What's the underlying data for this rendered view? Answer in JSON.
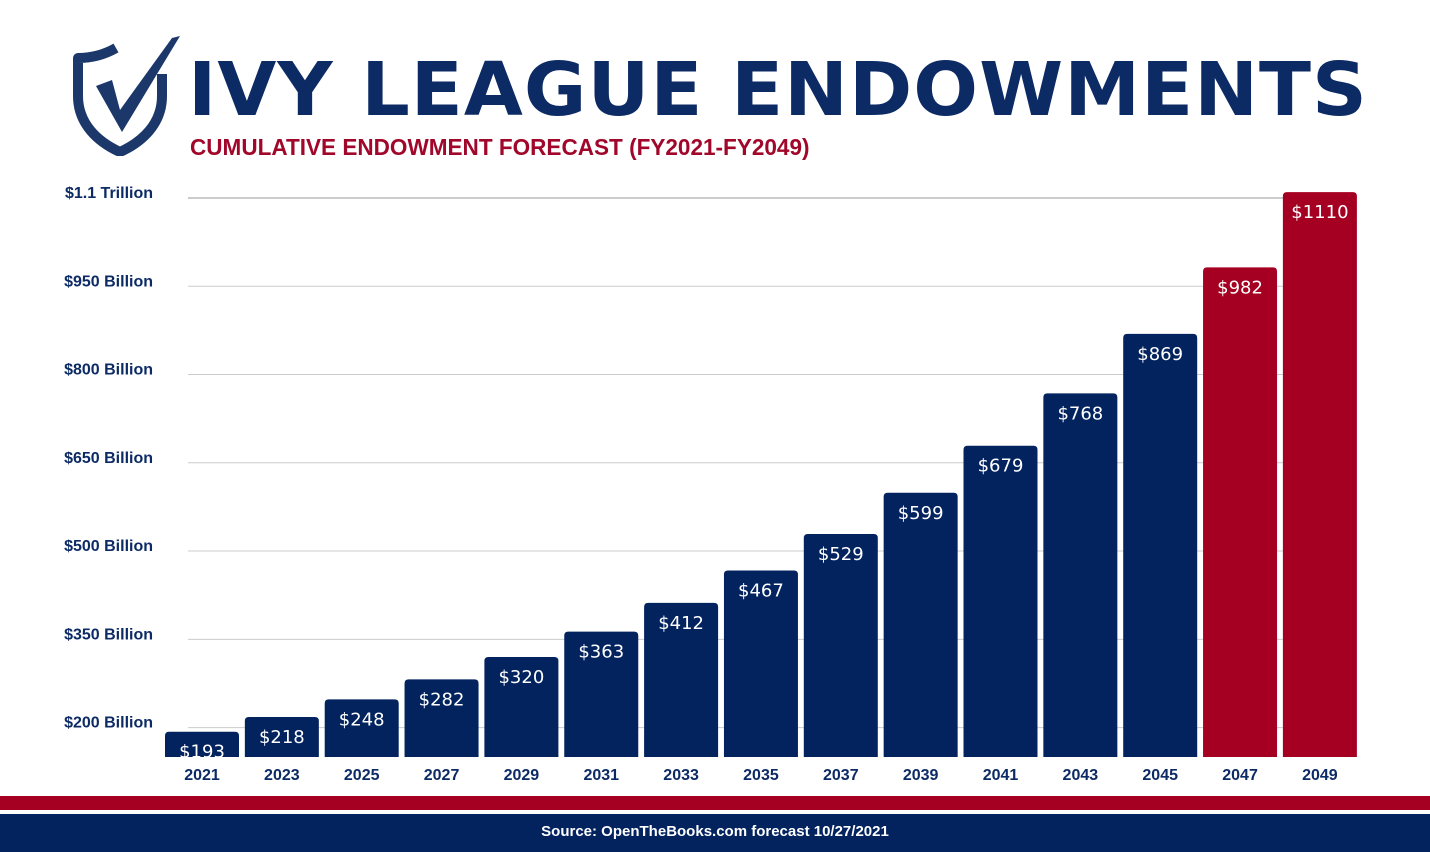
{
  "header": {
    "title": "IVY LEAGUE ENDOWMENTS",
    "subtitle": "CUMULATIVE ENDOWMENT FORECAST (FY2021-FY2049)",
    "logo_icon": "shield-checkmark-icon"
  },
  "footer": {
    "source": "Source: OpenTheBooks.com forecast 10/27/2021"
  },
  "colors": {
    "navy": "#03235f",
    "red": "#a50021"
  },
  "chart_data": {
    "type": "bar",
    "title": "",
    "xlabel": "",
    "ylabel": "",
    "ylim": [
      150,
      1100
    ],
    "grid": true,
    "yticks": [
      {
        "value": 200,
        "label": "$200 Billion"
      },
      {
        "value": 350,
        "label": "$350 Billion"
      },
      {
        "value": 500,
        "label": "$500 Billion"
      },
      {
        "value": 650,
        "label": "$650 Billion"
      },
      {
        "value": 800,
        "label": "$800 Billion"
      },
      {
        "value": 950,
        "label": "$950 Billion"
      },
      {
        "value": 1100,
        "label": "$1.1 Trillion"
      }
    ],
    "categories": [
      "2021",
      "2023",
      "2025",
      "2027",
      "2029",
      "2031",
      "2033",
      "2035",
      "2037",
      "2039",
      "2041",
      "2043",
      "2045",
      "2047",
      "2049"
    ],
    "values": [
      193,
      218,
      248,
      282,
      320,
      363,
      412,
      467,
      529,
      599,
      679,
      768,
      869,
      982,
      1110
    ],
    "data_labels": [
      "$193",
      "$218",
      "$248",
      "$282",
      "$320",
      "$363",
      "$412",
      "$467",
      "$529",
      "$599",
      "$679",
      "$768",
      "$869",
      "$982",
      "$1110"
    ],
    "bar_colors": [
      "#03235f",
      "#03235f",
      "#03235f",
      "#03235f",
      "#03235f",
      "#03235f",
      "#03235f",
      "#03235f",
      "#03235f",
      "#03235f",
      "#03235f",
      "#03235f",
      "#03235f",
      "#a50021",
      "#a50021"
    ]
  }
}
